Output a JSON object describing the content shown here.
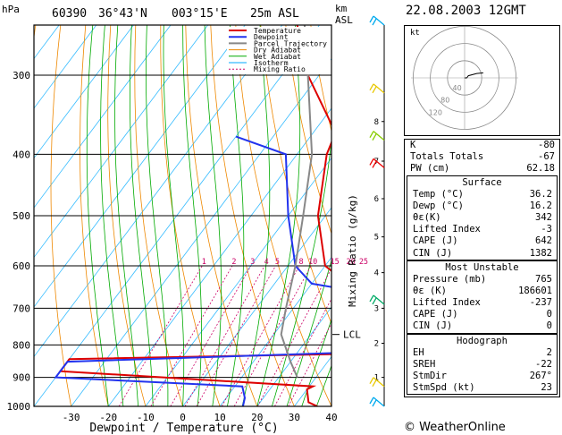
{
  "header": {
    "station": "60390",
    "lat": "36°43'N",
    "lon": "003°15'E",
    "elevation": "25m ASL",
    "units_left": "hPa",
    "units_right_1": "km",
    "units_right_2": "ASL",
    "date": "22.08.2003 12GMT"
  },
  "legend": {
    "items": [
      {
        "label": "Temperature",
        "color": "#dd0000"
      },
      {
        "label": "Dewpoint",
        "color": "#2233ee"
      },
      {
        "label": "Parcel Trajectory",
        "color": "#888888"
      },
      {
        "label": "Dry Adiabat",
        "color": "#ee8800"
      },
      {
        "label": "Wet Adiabat",
        "color": "#00aa00"
      },
      {
        "label": "Isotherm",
        "color": "#00aaff"
      },
      {
        "label": "Mixing Ratio",
        "color": "#cc0066"
      }
    ]
  },
  "chart_data": {
    "type": "line",
    "title": "",
    "xlabel": "Dewpoint / Temperature (°C)",
    "ylabel": "hPa",
    "y2label": "Mixing Ratio (g/kg)",
    "xlim": [
      -40,
      40
    ],
    "ylim": [
      1000,
      250
    ],
    "y_scale": "log",
    "x_ticks": [
      -30,
      -20,
      -10,
      0,
      10,
      20,
      30,
      40
    ],
    "y_ticks": [
      300,
      400,
      500,
      600,
      700,
      800,
      900,
      1000
    ],
    "mixing_ratio_labels": [
      "1",
      "2",
      "3",
      "4",
      "5",
      "8",
      "10",
      "15",
      "20",
      "25"
    ],
    "lcl_label": "LCL",
    "lcl_pressure": 770,
    "km_ticks": [
      "8",
      "7",
      "6",
      "5",
      "4",
      "3",
      "2",
      "1"
    ],
    "series": [
      {
        "name": "Temperature",
        "color": "#dd0000",
        "points": [
          [
            1000,
            36.2
          ],
          [
            985,
            33
          ],
          [
            940,
            30
          ],
          [
            930,
            31
          ],
          [
            880,
            -40
          ],
          [
            842,
            -40
          ],
          [
            825,
            40
          ],
          [
            810,
            40
          ],
          [
            800,
            34
          ],
          [
            700,
            33
          ],
          [
            600,
            10
          ],
          [
            500,
            -2
          ],
          [
            400,
            -12
          ],
          [
            370,
            -14
          ],
          [
            350,
            -19
          ],
          [
            300,
            -33
          ],
          [
            270,
            -40
          ],
          [
            250,
            -46
          ]
        ]
      },
      {
        "name": "Dewpoint",
        "color": "#2233ee",
        "points": [
          [
            1000,
            16.2
          ],
          [
            970,
            15
          ],
          [
            930,
            12
          ],
          [
            900,
            -40
          ],
          [
            850,
            -40
          ],
          [
            820,
            40
          ],
          [
            800,
            40
          ],
          [
            680,
            40
          ],
          [
            640,
            10
          ],
          [
            600,
            2
          ],
          [
            500,
            -10
          ],
          [
            400,
            -23
          ],
          [
            375,
            -40
          ]
        ]
      },
      {
        "name": "Parcel Trajectory",
        "color": "#888888",
        "points": [
          [
            900,
            25
          ],
          [
            850,
            20
          ],
          [
            770,
            12
          ],
          [
            700,
            8
          ],
          [
            600,
            2
          ],
          [
            500,
            -6
          ],
          [
            400,
            -16
          ],
          [
            300,
            -33
          ],
          [
            250,
            -44
          ]
        ]
      }
    ]
  },
  "hodograph": {
    "unit_label": "kt",
    "ring_labels": [
      "40",
      "80",
      "120"
    ],
    "points_deg_kt": [
      [
        270,
        5
      ],
      [
        240,
        10
      ],
      [
        250,
        30
      ],
      [
        255,
        45
      ]
    ]
  },
  "indices": {
    "rows": [
      {
        "label": "K",
        "value": "-80"
      },
      {
        "label": "Totals Totals",
        "value": "-67"
      },
      {
        "label": "PW (cm)",
        "value": "62.18"
      }
    ]
  },
  "surface": {
    "title": "Surface",
    "rows": [
      {
        "label": "Temp (°C)",
        "value": "36.2"
      },
      {
        "label": "Dewp (°C)",
        "value": "16.2"
      },
      {
        "label": "θε(K)",
        "value": "342"
      },
      {
        "label": "Lifted Index",
        "value": "-3"
      },
      {
        "label": "CAPE (J)",
        "value": "642"
      },
      {
        "label": "CIN (J)",
        "value": "1382"
      }
    ]
  },
  "unstable": {
    "title": "Most Unstable",
    "rows": [
      {
        "label": "Pressure (mb)",
        "value": "765"
      },
      {
        "label": "θε (K)",
        "value": "186601"
      },
      {
        "label": "Lifted Index",
        "value": "-237"
      },
      {
        "label": "CAPE (J)",
        "value": "0"
      },
      {
        "label": "CIN (J)",
        "value": "0"
      }
    ]
  },
  "hodo_table": {
    "title": "Hodograph",
    "rows": [
      {
        "label": "EH",
        "value": "2"
      },
      {
        "label": "SREH",
        "value": "-22"
      },
      {
        "label": "StmDir",
        "value": "267°"
      },
      {
        "label": "StmSpd (kt)",
        "value": "23"
      }
    ]
  },
  "footer": {
    "copyright": "© WeatherOnline"
  }
}
